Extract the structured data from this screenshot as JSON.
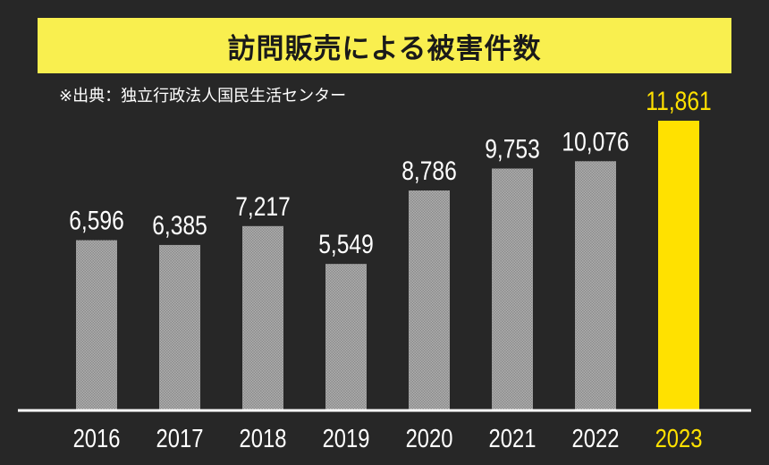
{
  "chart_data": {
    "type": "bar",
    "title": "訪問販売による被害件数",
    "source": "※出典：独立行政法人国民生活センター",
    "categories": [
      "2016",
      "2017",
      "2018",
      "2019",
      "2020",
      "2021",
      "2022",
      "2023"
    ],
    "values": [
      6596,
      6385,
      7217,
      5549,
      8786,
      9753,
      10076,
      11861
    ],
    "value_labels": [
      "6,596",
      "6,385",
      "7,217",
      "5,549",
      "8,786",
      "9,753",
      "10,076",
      "11,861"
    ],
    "highlight_index": 7,
    "colors": {
      "background": "#272727",
      "bar": "#9a9a9a",
      "highlight": "#ffe100",
      "title_band": "#f9ef4f",
      "text": "#ffffff",
      "axis": "#ffffff"
    },
    "grid": false
  }
}
